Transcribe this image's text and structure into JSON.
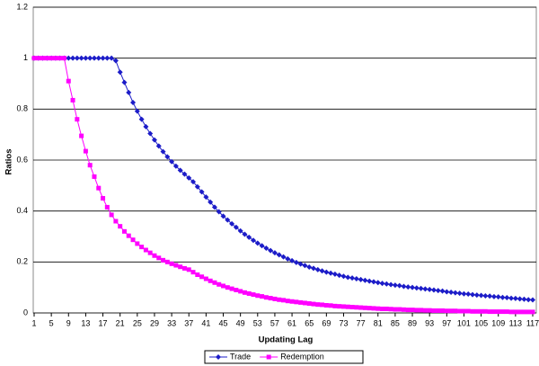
{
  "chart_data": {
    "type": "line",
    "xlabel": "Updating Lag",
    "ylabel": "Ratios",
    "x": [
      1,
      2,
      3,
      4,
      5,
      6,
      7,
      8,
      9,
      10,
      11,
      12,
      13,
      14,
      15,
      16,
      17,
      18,
      19,
      20,
      21,
      22,
      23,
      24,
      25,
      26,
      27,
      28,
      29,
      30,
      31,
      32,
      33,
      34,
      35,
      36,
      37,
      38,
      39,
      40,
      41,
      42,
      43,
      44,
      45,
      46,
      47,
      48,
      49,
      50,
      51,
      52,
      53,
      54,
      55,
      56,
      57,
      58,
      59,
      60,
      61,
      62,
      63,
      64,
      65,
      66,
      67,
      68,
      69,
      70,
      71,
      72,
      73,
      74,
      75,
      76,
      77,
      78,
      79,
      80,
      81,
      82,
      83,
      84,
      85,
      86,
      87,
      88,
      89,
      90,
      91,
      92,
      93,
      94,
      95,
      96,
      97,
      98,
      99,
      100,
      101,
      102,
      103,
      104,
      105,
      106,
      107,
      108,
      109,
      110,
      111,
      112,
      113,
      114,
      115,
      116,
      117
    ],
    "series": [
      {
        "name": "Trade",
        "color": "#1c1cc8",
        "marker": "diamond",
        "values": [
          1,
          1,
          1,
          1,
          1,
          1,
          1,
          1,
          1,
          1,
          1,
          1,
          1,
          1,
          1,
          1,
          1,
          1,
          1,
          0.99,
          0.945,
          0.905,
          0.865,
          0.826,
          0.792,
          0.76,
          0.731,
          0.704,
          0.679,
          0.655,
          0.633,
          0.613,
          0.594,
          0.576,
          0.56,
          0.545,
          0.53,
          0.515,
          0.495,
          0.475,
          0.455,
          0.435,
          0.415,
          0.397,
          0.38,
          0.365,
          0.35,
          0.336,
          0.322,
          0.309,
          0.297,
          0.285,
          0.274,
          0.264,
          0.254,
          0.245,
          0.236,
          0.228,
          0.22,
          0.212,
          0.205,
          0.198,
          0.192,
          0.186,
          0.18,
          0.175,
          0.17,
          0.165,
          0.16,
          0.156,
          0.152,
          0.148,
          0.144,
          0.14,
          0.137,
          0.134,
          0.131,
          0.128,
          0.125,
          0.122,
          0.119,
          0.116,
          0.114,
          0.111,
          0.109,
          0.107,
          0.104,
          0.102,
          0.1,
          0.098,
          0.096,
          0.094,
          0.092,
          0.09,
          0.088,
          0.086,
          0.083,
          0.081,
          0.079,
          0.077,
          0.075,
          0.074,
          0.072,
          0.07,
          0.069,
          0.067,
          0.066,
          0.064,
          0.063,
          0.061,
          0.06,
          0.058,
          0.057,
          0.055,
          0.054,
          0.052,
          0.051
        ]
      },
      {
        "name": "Redemption",
        "color": "#ff00ff",
        "marker": "square",
        "values": [
          1,
          1,
          1,
          1,
          1,
          1,
          1,
          1,
          0.91,
          0.835,
          0.76,
          0.695,
          0.635,
          0.58,
          0.535,
          0.49,
          0.45,
          0.415,
          0.385,
          0.36,
          0.34,
          0.32,
          0.303,
          0.287,
          0.272,
          0.259,
          0.247,
          0.236,
          0.225,
          0.216,
          0.207,
          0.2,
          0.193,
          0.187,
          0.181,
          0.175,
          0.17,
          0.16,
          0.15,
          0.142,
          0.134,
          0.126,
          0.119,
          0.112,
          0.106,
          0.1,
          0.095,
          0.09,
          0.085,
          0.08,
          0.076,
          0.072,
          0.068,
          0.065,
          0.061,
          0.058,
          0.055,
          0.052,
          0.05,
          0.047,
          0.045,
          0.043,
          0.041,
          0.039,
          0.037,
          0.035,
          0.033,
          0.032,
          0.03,
          0.029,
          0.027,
          0.026,
          0.025,
          0.024,
          0.023,
          0.022,
          0.021,
          0.02,
          0.019,
          0.018,
          0.017,
          0.016,
          0.016,
          0.015,
          0.014,
          0.014,
          0.013,
          0.012,
          0.012,
          0.011,
          0.011,
          0.01,
          0.01,
          0.009,
          0.009,
          0.009,
          0.008,
          0.008,
          0.008,
          0.007,
          0.007,
          0.007,
          0.006,
          0.006,
          0.006,
          0.006,
          0.005,
          0.005,
          0.005,
          0.005,
          0.005,
          0.004,
          0.004,
          0.004,
          0.004,
          0.004,
          0.004
        ]
      }
    ],
    "xlim": [
      1,
      117
    ],
    "xticks": [
      1,
      5,
      9,
      13,
      17,
      21,
      25,
      29,
      33,
      37,
      41,
      45,
      49,
      53,
      57,
      61,
      65,
      69,
      73,
      77,
      81,
      85,
      89,
      93,
      97,
      101,
      105,
      109,
      113,
      117
    ],
    "ylim": [
      0,
      1.2
    ],
    "yticks": [
      0,
      0.2,
      0.4,
      0.6,
      0.8,
      1,
      1.2
    ],
    "grid": true,
    "legend": "bottom"
  }
}
